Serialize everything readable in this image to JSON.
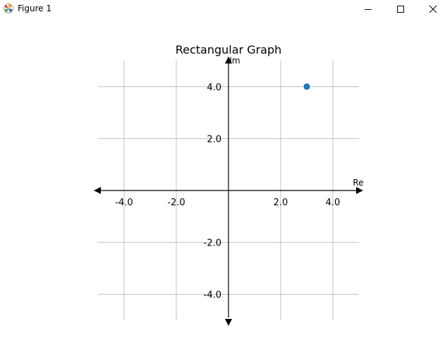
{
  "window": {
    "title": "Figure 1",
    "icon": "matplotlib-logo-icon"
  },
  "chart_data": {
    "type": "scatter",
    "title": "Rectangular Graph",
    "xlabel": "Re",
    "ylabel": "Im",
    "xlim": [
      -5,
      5
    ],
    "ylim": [
      -5,
      5
    ],
    "grid": true,
    "x_ticks": [
      -4.0,
      -2.0,
      2.0,
      4.0
    ],
    "y_ticks": [
      4.0,
      2.0,
      -2.0,
      -4.0
    ],
    "x_tick_labels": [
      "-4.0",
      "-2.0",
      "2.0",
      "4.0"
    ],
    "y_tick_labels": [
      "4.0",
      "2.0",
      "-2.0",
      "-4.0"
    ],
    "points": [
      {
        "x": 3,
        "y": 4
      }
    ],
    "point_color": "#1f77b4",
    "grid_color": "#b0b0b0",
    "axis_color": "#000000"
  }
}
